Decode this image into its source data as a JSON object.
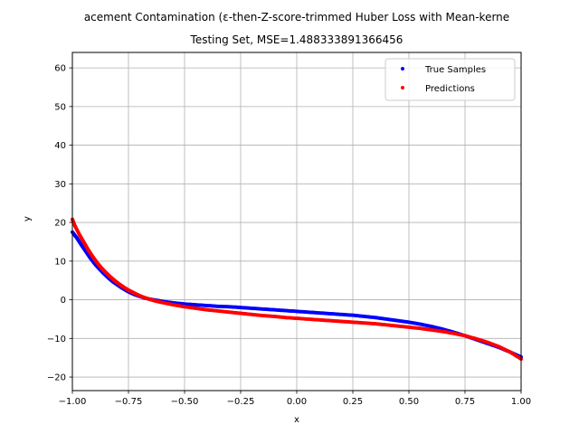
{
  "chart_data": {
    "type": "scatter",
    "title_line1": "acement Contamination (ε-then-Z-score-trimmed Huber Loss with Mean-kerne",
    "title_line2": "Testing Set, MSE=1.488333891366456",
    "xlabel": "x",
    "ylabel": "y",
    "xlim": [
      -1.0,
      1.0
    ],
    "ylim": [
      -23.5,
      64
    ],
    "grid": true,
    "legend_position": "top-right",
    "x_ticks": [
      {
        "value": -1.0,
        "label": "−1.00"
      },
      {
        "value": -0.75,
        "label": "−0.75"
      },
      {
        "value": -0.5,
        "label": "−0.50"
      },
      {
        "value": -0.25,
        "label": "−0.25"
      },
      {
        "value": 0.0,
        "label": "0.00"
      },
      {
        "value": 0.25,
        "label": "0.25"
      },
      {
        "value": 0.5,
        "label": "0.50"
      },
      {
        "value": 0.75,
        "label": "0.75"
      },
      {
        "value": 1.0,
        "label": "1.00"
      }
    ],
    "y_ticks": [
      {
        "value": -20,
        "label": "−20"
      },
      {
        "value": -10,
        "label": "−10"
      },
      {
        "value": 0,
        "label": "0"
      },
      {
        "value": 10,
        "label": "10"
      },
      {
        "value": 20,
        "label": "20"
      },
      {
        "value": 30,
        "label": "30"
      },
      {
        "value": 40,
        "label": "40"
      },
      {
        "value": 50,
        "label": "50"
      },
      {
        "value": 60,
        "label": "60"
      }
    ],
    "series": [
      {
        "name": "True Samples",
        "color": "#0000ff",
        "points": [
          [
            -1.0,
            17.5
          ],
          [
            -0.98,
            16.0
          ],
          [
            -0.96,
            14.2
          ],
          [
            -0.94,
            12.5
          ],
          [
            -0.92,
            10.8
          ],
          [
            -0.9,
            9.3
          ],
          [
            -0.88,
            8.0
          ],
          [
            -0.86,
            6.8
          ],
          [
            -0.84,
            5.7
          ],
          [
            -0.82,
            4.7
          ],
          [
            -0.8,
            3.9
          ],
          [
            -0.78,
            3.1
          ],
          [
            -0.76,
            2.4
          ],
          [
            -0.74,
            1.8
          ],
          [
            -0.72,
            1.3
          ],
          [
            -0.7,
            0.9
          ],
          [
            -0.68,
            0.5
          ],
          [
            -0.65,
            0.1
          ],
          [
            -0.62,
            -0.2
          ],
          [
            -0.6,
            -0.4
          ],
          [
            -0.55,
            -0.8
          ],
          [
            -0.5,
            -1.1
          ],
          [
            -0.45,
            -1.3
          ],
          [
            -0.4,
            -1.5
          ],
          [
            -0.35,
            -1.7
          ],
          [
            -0.3,
            -1.8
          ],
          [
            -0.25,
            -2.0
          ],
          [
            -0.2,
            -2.2
          ],
          [
            -0.15,
            -2.4
          ],
          [
            -0.1,
            -2.6
          ],
          [
            -0.05,
            -2.8
          ],
          [
            0.0,
            -3.0
          ],
          [
            0.05,
            -3.2
          ],
          [
            0.1,
            -3.4
          ],
          [
            0.15,
            -3.6
          ],
          [
            0.2,
            -3.8
          ],
          [
            0.25,
            -4.0
          ],
          [
            0.3,
            -4.3
          ],
          [
            0.35,
            -4.6
          ],
          [
            0.4,
            -5.0
          ],
          [
            0.45,
            -5.4
          ],
          [
            0.5,
            -5.8
          ],
          [
            0.55,
            -6.3
          ],
          [
            0.6,
            -6.9
          ],
          [
            0.65,
            -7.6
          ],
          [
            0.7,
            -8.4
          ],
          [
            0.75,
            -9.3
          ],
          [
            0.8,
            -10.3
          ],
          [
            0.85,
            -11.3
          ],
          [
            0.9,
            -12.3
          ],
          [
            0.95,
            -13.5
          ],
          [
            1.0,
            -14.8
          ]
        ]
      },
      {
        "name": "Predictions",
        "color": "#ff0000",
        "points": [
          [
            -1.0,
            20.8
          ],
          [
            -0.99,
            19.3
          ],
          [
            -0.97,
            17.0
          ],
          [
            -0.95,
            15.0
          ],
          [
            -0.93,
            13.0
          ],
          [
            -0.91,
            11.2
          ],
          [
            -0.89,
            9.6
          ],
          [
            -0.87,
            8.2
          ],
          [
            -0.85,
            7.0
          ],
          [
            -0.83,
            5.9
          ],
          [
            -0.81,
            4.9
          ],
          [
            -0.79,
            4.0
          ],
          [
            -0.77,
            3.2
          ],
          [
            -0.75,
            2.5
          ],
          [
            -0.73,
            1.9
          ],
          [
            -0.71,
            1.3
          ],
          [
            -0.69,
            0.8
          ],
          [
            -0.66,
            0.2
          ],
          [
            -0.63,
            -0.3
          ],
          [
            -0.6,
            -0.7
          ],
          [
            -0.55,
            -1.3
          ],
          [
            -0.5,
            -1.8
          ],
          [
            -0.45,
            -2.2
          ],
          [
            -0.4,
            -2.6
          ],
          [
            -0.35,
            -2.9
          ],
          [
            -0.3,
            -3.2
          ],
          [
            -0.25,
            -3.5
          ],
          [
            -0.2,
            -3.8
          ],
          [
            -0.15,
            -4.1
          ],
          [
            -0.1,
            -4.3
          ],
          [
            -0.05,
            -4.6
          ],
          [
            0.0,
            -4.8
          ],
          [
            0.05,
            -5.0
          ],
          [
            0.1,
            -5.2
          ],
          [
            0.15,
            -5.4
          ],
          [
            0.2,
            -5.6
          ],
          [
            0.25,
            -5.8
          ],
          [
            0.3,
            -6.0
          ],
          [
            0.35,
            -6.2
          ],
          [
            0.4,
            -6.5
          ],
          [
            0.45,
            -6.8
          ],
          [
            0.5,
            -7.1
          ],
          [
            0.55,
            -7.4
          ],
          [
            0.6,
            -7.8
          ],
          [
            0.65,
            -8.2
          ],
          [
            0.7,
            -8.7
          ],
          [
            0.75,
            -9.3
          ],
          [
            0.8,
            -10.1
          ],
          [
            0.85,
            -11.0
          ],
          [
            0.9,
            -12.1
          ],
          [
            0.95,
            -13.5
          ],
          [
            1.0,
            -15.3
          ]
        ]
      }
    ]
  }
}
